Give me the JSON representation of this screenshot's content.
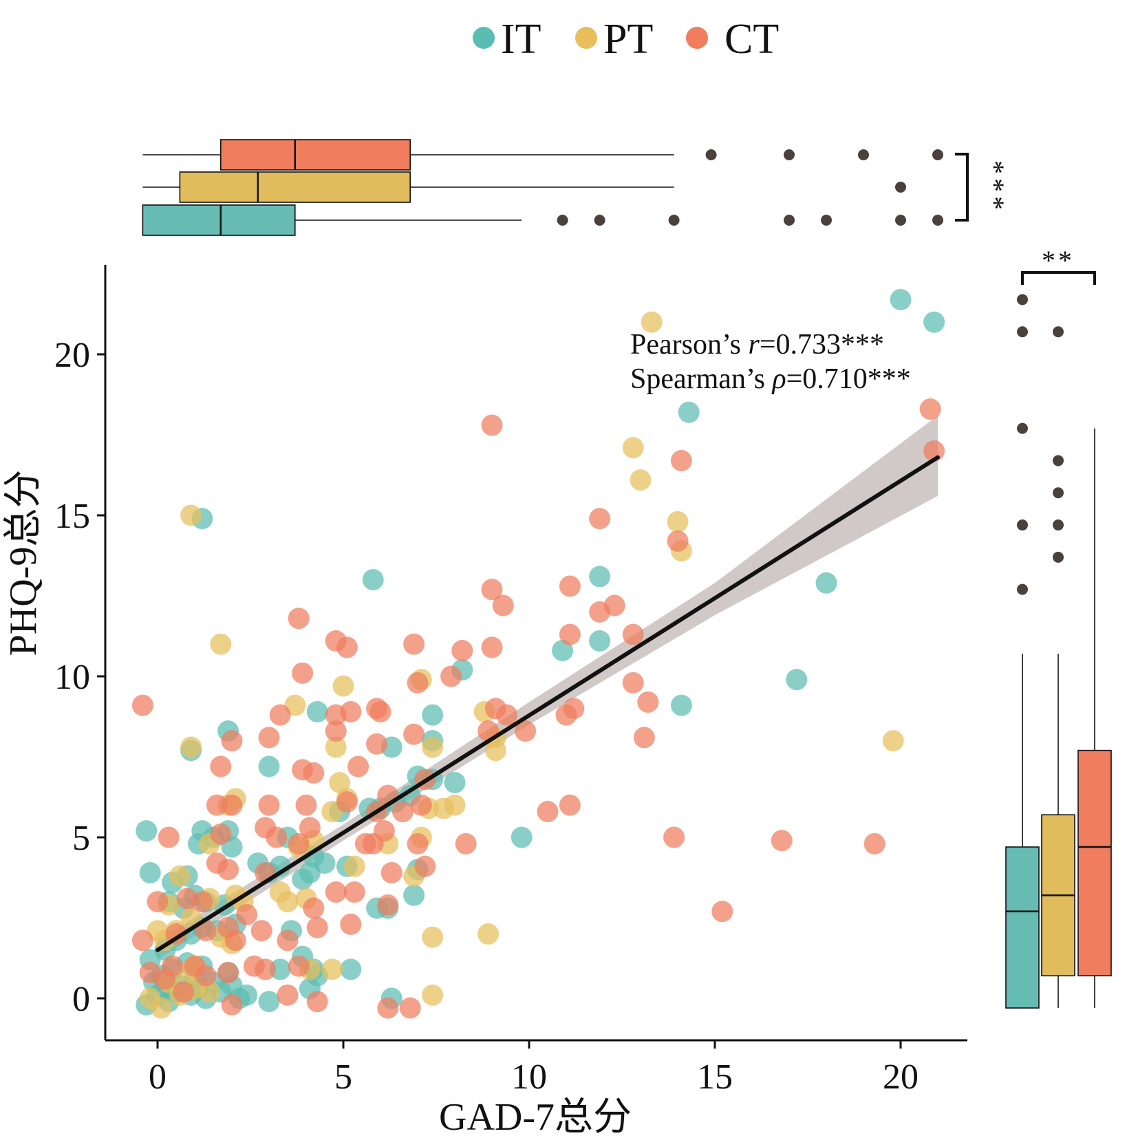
{
  "chart_data": {
    "type": "scatter",
    "xlabel": "GAD-7总分",
    "ylabel": "PHQ-9总分",
    "xlim": [
      -1.5,
      21.7
    ],
    "ylim": [
      -1.4,
      22.8
    ],
    "xticks": [
      "0",
      "5",
      "10",
      "15",
      "20"
    ],
    "yticks": [
      "0",
      "5",
      "10",
      "15",
      "20"
    ],
    "grid": false,
    "legend_position": "top-center",
    "series": [
      {
        "name": "IT",
        "color": "#5bbcb2",
        "points": [
          [
            -0.3,
            -0.2
          ],
          [
            0.0,
            0.1
          ],
          [
            0.2,
            0.3
          ],
          [
            -0.1,
            0.5
          ],
          [
            0.3,
            -0.1
          ],
          [
            0.5,
            0.2
          ],
          [
            0.1,
            0.7
          ],
          [
            0.6,
            0.4
          ],
          [
            0.4,
            0.9
          ],
          [
            0.9,
            0.1
          ],
          [
            1.1,
            0.3
          ],
          [
            1.3,
            0.0
          ],
          [
            1.0,
            0.6
          ],
          [
            0.8,
            1.1
          ],
          [
            1.2,
            1.0
          ],
          [
            1.5,
            0.5
          ],
          [
            1.7,
            0.2
          ],
          [
            2.0,
            0.4
          ],
          [
            2.2,
            0.0
          ],
          [
            1.9,
            0.8
          ],
          [
            -0.2,
            1.2
          ],
          [
            0.2,
            1.5
          ],
          [
            0.5,
            1.8
          ],
          [
            0.9,
            2.0
          ],
          [
            1.2,
            2.2
          ],
          [
            1.6,
            2.1
          ],
          [
            2.1,
            2.3
          ],
          [
            0.3,
            3.0
          ],
          [
            0.7,
            2.8
          ],
          [
            1.0,
            3.2
          ],
          [
            1.3,
            3.0
          ],
          [
            1.8,
            2.9
          ],
          [
            -0.2,
            3.9
          ],
          [
            0.4,
            3.6
          ],
          [
            0.8,
            3.8
          ],
          [
            1.1,
            4.8
          ],
          [
            1.2,
            5.2
          ],
          [
            1.9,
            5.2
          ],
          [
            2.0,
            4.7
          ],
          [
            -0.3,
            5.2
          ],
          [
            2.7,
            4.2
          ],
          [
            3.0,
            3.9
          ],
          [
            3.3,
            4.1
          ],
          [
            3.5,
            5.0
          ],
          [
            3.9,
            3.7
          ],
          [
            4.1,
            3.9
          ],
          [
            4.2,
            4.4
          ],
          [
            4.5,
            4.2
          ],
          [
            3.6,
            2.1
          ],
          [
            3.9,
            1.3
          ],
          [
            4.2,
            0.9
          ],
          [
            4.3,
            0.7
          ],
          [
            5.1,
            4.1
          ],
          [
            5.2,
            0.9
          ],
          [
            4.9,
            5.8
          ],
          [
            5.7,
            5.9
          ],
          [
            6.0,
            5.9
          ],
          [
            6.4,
            6.1
          ],
          [
            6.8,
            6.3
          ],
          [
            7.0,
            6.9
          ],
          [
            7.4,
            6.8
          ],
          [
            6.3,
            0.0
          ],
          [
            6.2,
            2.8
          ],
          [
            6.9,
            3.2
          ],
          [
            7.4,
            8.0
          ],
          [
            7.4,
            8.8
          ],
          [
            8.2,
            10.2
          ],
          [
            6.3,
            7.8
          ],
          [
            4.3,
            8.9
          ],
          [
            3.0,
            7.2
          ],
          [
            1.9,
            8.3
          ],
          [
            0.9,
            7.7
          ],
          [
            1.2,
            14.9
          ],
          [
            5.8,
            13.0
          ],
          [
            7.0,
            4.0
          ],
          [
            3.0,
            -0.1
          ],
          [
            3.3,
            0.9
          ],
          [
            4.1,
            0.3
          ],
          [
            5.9,
            2.8
          ],
          [
            9.8,
            5.0
          ],
          [
            8.0,
            6.7
          ],
          [
            11.9,
            13.1
          ],
          [
            11.9,
            11.1
          ],
          [
            10.9,
            10.8
          ],
          [
            14.1,
            9.1
          ],
          [
            14.3,
            18.2
          ],
          [
            17.2,
            9.9
          ],
          [
            18.0,
            12.9
          ],
          [
            20.0,
            21.7
          ],
          [
            20.9,
            21.0
          ],
          [
            2.4,
            0.1
          ],
          [
            1.5,
            5.0
          ]
        ]
      },
      {
        "name": "PT",
        "color": "#e8bf5c",
        "points": [
          [
            -0.2,
            0.0
          ],
          [
            0.1,
            -0.3
          ],
          [
            0.3,
            0.5
          ],
          [
            0.6,
            0.1
          ],
          [
            0.8,
            0.8
          ],
          [
            1.0,
            0.3
          ],
          [
            1.4,
            0.2
          ],
          [
            0.2,
            1.8
          ],
          [
            0.5,
            2.1
          ],
          [
            0.9,
            2.5
          ],
          [
            1.4,
            3.1
          ],
          [
            1.7,
            1.9
          ],
          [
            2.0,
            1.7
          ],
          [
            0.3,
            2.9
          ],
          [
            0.6,
            3.8
          ],
          [
            1.4,
            4.8
          ],
          [
            2.1,
            3.2
          ],
          [
            2.1,
            6.2
          ],
          [
            1.9,
            6.0
          ],
          [
            1.7,
            11.0
          ],
          [
            0.9,
            15.0
          ],
          [
            0.9,
            7.8
          ],
          [
            3.3,
            3.3
          ],
          [
            3.5,
            3.0
          ],
          [
            4.0,
            3.1
          ],
          [
            3.8,
            4.7
          ],
          [
            4.2,
            4.9
          ],
          [
            4.7,
            5.8
          ],
          [
            4.9,
            6.7
          ],
          [
            5.1,
            6.2
          ],
          [
            5.0,
            9.7
          ],
          [
            3.7,
            9.1
          ],
          [
            4.8,
            7.8
          ],
          [
            4.7,
            0.9
          ],
          [
            5.3,
            4.1
          ],
          [
            6.2,
            4.8
          ],
          [
            7.1,
            5.0
          ],
          [
            6.9,
            3.8
          ],
          [
            7.3,
            5.9
          ],
          [
            7.4,
            1.9
          ],
          [
            7.4,
            0.1
          ],
          [
            7.1,
            9.9
          ],
          [
            7.4,
            7.8
          ],
          [
            8.0,
            6.0
          ],
          [
            7.7,
            5.9
          ],
          [
            8.8,
            8.9
          ],
          [
            8.9,
            2.0
          ],
          [
            9.1,
            8.1
          ],
          [
            9.1,
            7.7
          ],
          [
            13.3,
            21.0
          ],
          [
            12.8,
            17.1
          ],
          [
            13.0,
            16.1
          ],
          [
            14.0,
            14.8
          ],
          [
            14.1,
            13.9
          ],
          [
            19.8,
            8.0
          ],
          [
            1.0,
            1.0
          ],
          [
            0.0,
            2.1
          ],
          [
            4.1,
            0.9
          ],
          [
            2.3,
            3.0
          ]
        ]
      },
      {
        "name": "CT",
        "color": "#ef7d5e",
        "points": [
          [
            -0.2,
            0.8
          ],
          [
            0.2,
            0.6
          ],
          [
            0.4,
            1.0
          ],
          [
            0.7,
            0.2
          ],
          [
            1.0,
            1.0
          ],
          [
            1.3,
            0.7
          ],
          [
            1.9,
            0.8
          ],
          [
            2.0,
            -0.2
          ],
          [
            -0.4,
            1.8
          ],
          [
            0.0,
            3.0
          ],
          [
            0.5,
            2.0
          ],
          [
            1.3,
            2.1
          ],
          [
            1.9,
            2.2
          ],
          [
            2.1,
            1.8
          ],
          [
            2.4,
            2.6
          ],
          [
            0.3,
            5.0
          ],
          [
            1.6,
            4.2
          ],
          [
            1.9,
            4.0
          ],
          [
            1.7,
            5.1
          ],
          [
            1.6,
            6.0
          ],
          [
            2.0,
            6.0
          ],
          [
            1.7,
            7.2
          ],
          [
            2.0,
            8.0
          ],
          [
            3.0,
            8.1
          ],
          [
            3.3,
            8.8
          ],
          [
            3.0,
            6.0
          ],
          [
            2.9,
            5.3
          ],
          [
            3.2,
            5.0
          ],
          [
            2.9,
            3.9
          ],
          [
            2.8,
            2.1
          ],
          [
            2.6,
            1.0
          ],
          [
            2.9,
            0.9
          ],
          [
            3.5,
            0.1
          ],
          [
            3.8,
            1.0
          ],
          [
            3.8,
            4.8
          ],
          [
            4.1,
            5.3
          ],
          [
            4.0,
            6.0
          ],
          [
            4.2,
            7.0
          ],
          [
            3.9,
            7.1
          ],
          [
            3.9,
            10.1
          ],
          [
            3.8,
            11.8
          ],
          [
            4.2,
            2.8
          ],
          [
            4.3,
            2.2
          ],
          [
            4.3,
            -0.1
          ],
          [
            4.8,
            3.3
          ],
          [
            5.2,
            2.3
          ],
          [
            5.3,
            3.3
          ],
          [
            5.1,
            6.1
          ],
          [
            5.4,
            7.2
          ],
          [
            4.8,
            8.3
          ],
          [
            4.8,
            8.8
          ],
          [
            5.2,
            8.9
          ],
          [
            4.8,
            11.1
          ],
          [
            5.1,
            10.9
          ],
          [
            5.9,
            9.0
          ],
          [
            6.0,
            8.9
          ],
          [
            5.9,
            7.9
          ],
          [
            6.2,
            6.3
          ],
          [
            5.9,
            5.8
          ],
          [
            6.1,
            5.2
          ],
          [
            5.8,
            4.8
          ],
          [
            6.3,
            3.9
          ],
          [
            6.2,
            2.9
          ],
          [
            6.2,
            -0.3
          ],
          [
            6.8,
            -0.3
          ],
          [
            7.0,
            4.8
          ],
          [
            7.2,
            4.1
          ],
          [
            7.1,
            6.0
          ],
          [
            7.2,
            6.8
          ],
          [
            6.9,
            8.2
          ],
          [
            7.0,
            9.8
          ],
          [
            6.9,
            11.0
          ],
          [
            7.9,
            10.0
          ],
          [
            8.2,
            10.8
          ],
          [
            8.3,
            4.8
          ],
          [
            8.9,
            8.3
          ],
          [
            9.1,
            9.0
          ],
          [
            9.0,
            10.9
          ],
          [
            9.0,
            12.7
          ],
          [
            9.3,
            12.2
          ],
          [
            9.0,
            17.8
          ],
          [
            9.4,
            8.8
          ],
          [
            9.9,
            8.3
          ],
          [
            10.5,
            5.8
          ],
          [
            11.0,
            8.8
          ],
          [
            11.2,
            9.0
          ],
          [
            11.1,
            11.3
          ],
          [
            11.1,
            12.8
          ],
          [
            11.1,
            6.0
          ],
          [
            11.9,
            14.9
          ],
          [
            11.9,
            12.0
          ],
          [
            12.3,
            12.2
          ],
          [
            12.8,
            11.3
          ],
          [
            12.8,
            9.8
          ],
          [
            13.2,
            9.2
          ],
          [
            13.1,
            8.1
          ],
          [
            13.9,
            5.0
          ],
          [
            14.0,
            14.2
          ],
          [
            14.1,
            16.7
          ],
          [
            15.2,
            2.7
          ],
          [
            16.8,
            4.9
          ],
          [
            19.3,
            4.8
          ],
          [
            20.9,
            17.0
          ],
          [
            20.8,
            18.3
          ],
          [
            -0.4,
            9.1
          ],
          [
            1.2,
            3.0
          ],
          [
            0.8,
            3.1
          ],
          [
            3.5,
            1.8
          ],
          [
            5.6,
            4.8
          ],
          [
            6.6,
            5.8
          ]
        ]
      }
    ],
    "regression": {
      "line": [
        [
          0.0,
          1.5
        ],
        [
          21.0,
          16.8
        ]
      ],
      "ci_upper": [
        [
          0.0,
          1.8
        ],
        [
          5,
          5.4
        ],
        [
          10,
          9.2
        ],
        [
          15,
          12.9
        ],
        [
          21,
          18.1
        ]
      ],
      "ci_lower": [
        [
          0.0,
          1.2
        ],
        [
          5,
          4.9
        ],
        [
          10,
          8.5
        ],
        [
          15,
          11.9
        ],
        [
          21,
          15.6
        ]
      ],
      "color": "#111111",
      "band_color": "#c8c0bd"
    },
    "annotations": {
      "pearson": {
        "label": "Pearson’s ",
        "symbol": "r",
        "value": "=0.733***"
      },
      "spearman": {
        "label": "Spearman’s ",
        "symbol": "ρ",
        "value": "=0.710***"
      }
    },
    "top_boxplot": {
      "axis": "GAD-7",
      "boxes": [
        {
          "group": "CT",
          "color": "#ef7d5e",
          "min": -0.4,
          "q1": 1.7,
          "median": 3.7,
          "q3": 6.8,
          "max": 13.9,
          "outliers": [
            14.9,
            17.0,
            19.0,
            21.0
          ]
        },
        {
          "group": "PT",
          "color": "#e0bc5c",
          "min": -0.4,
          "q1": 0.6,
          "median": 2.7,
          "q3": 6.8,
          "max": 13.9,
          "outliers": [
            20.0
          ]
        },
        {
          "group": "IT",
          "color": "#66bcb3",
          "min": -0.4,
          "q1": -0.4,
          "median": 1.7,
          "q3": 3.7,
          "max": 9.8,
          "outliers": [
            10.9,
            11.9,
            13.9,
            17.0,
            18.0,
            20.0,
            21.0
          ]
        }
      ],
      "significance": "***"
    },
    "right_boxplot": {
      "axis": "PHQ-9",
      "boxes": [
        {
          "group": "IT",
          "color": "#66bcb3",
          "min": -0.3,
          "q1": -0.3,
          "median": 2.7,
          "q3": 4.7,
          "max": 10.7,
          "outliers": [
            12.7,
            14.7,
            17.7,
            20.7,
            21.7
          ]
        },
        {
          "group": "PT",
          "color": "#e0bc5c",
          "min": -0.3,
          "q1": 0.7,
          "median": 3.2,
          "q3": 5.7,
          "max": 10.7,
          "outliers": [
            13.7,
            14.7,
            15.7,
            16.7,
            20.7
          ]
        },
        {
          "group": "CT",
          "color": "#ef7d5e",
          "min": -0.3,
          "q1": 0.7,
          "median": 4.7,
          "q3": 7.7,
          "max": 17.7,
          "outliers": []
        }
      ],
      "significance": "**"
    }
  },
  "legend": [
    {
      "label": "IT",
      "color": "#5bbcb2"
    },
    {
      "label": "PT",
      "color": "#e8bf5c"
    },
    {
      "label": "CT",
      "color": "#ef7d5e"
    }
  ],
  "colors": {
    "axis": "#111111",
    "outlier": "#4a403c"
  }
}
